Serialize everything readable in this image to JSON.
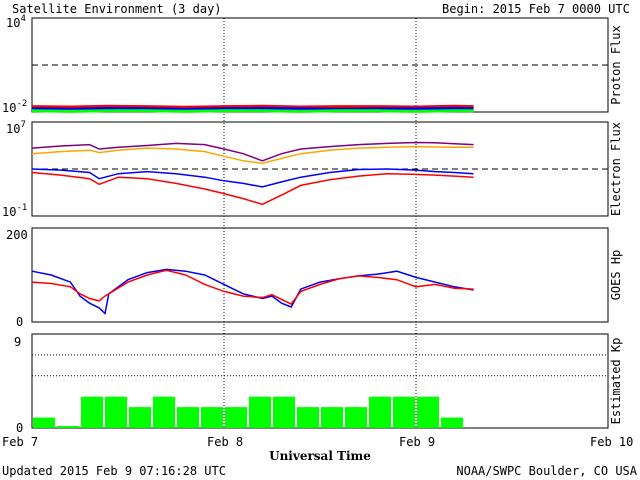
{
  "header": {
    "title": "Satellite Environment (3 day)",
    "begin": "Begin:  2015 Feb 7 0000 UTC"
  },
  "footer": {
    "updated": "Updated 2015 Feb  9 07:16:28 UTC",
    "credit": "NOAA/SWPC Boulder, CO USA",
    "xlabel": "Universal Time"
  },
  "colors": {
    "red": "#ff0000",
    "blue": "#0000ff",
    "green": "#00ff00",
    "purple": "#800080",
    "orange": "#ffa500",
    "kp": "#00ff00"
  },
  "chart_data": [
    {
      "type": "line",
      "panel": "proton",
      "ylabel": "Proton Flux",
      "yscale": "log",
      "ylim": [
        0.01,
        10000
      ],
      "ytick_labels": [
        {
          "base": "10",
          "exp": "4"
        },
        {
          "base": "10",
          "exp": "-2"
        }
      ],
      "threshold": 10,
      "x_range_days": [
        0,
        3
      ],
      "series": [
        {
          "color": "red",
          "values": [
            0.022,
            0.021,
            0.023,
            0.022,
            0.02,
            0.022,
            0.023,
            0.021,
            0.022,
            0.022,
            0.021,
            0.023,
            0.022
          ]
        },
        {
          "color": "blue",
          "values": [
            0.016,
            0.015,
            0.017,
            0.016,
            0.015,
            0.016,
            0.017,
            0.016,
            0.015,
            0.016,
            0.016,
            0.017,
            0.016
          ]
        },
        {
          "color": "green",
          "values": [
            0.012,
            0.011,
            0.012,
            0.012,
            0.011,
            0.012,
            0.012,
            0.011,
            0.012,
            0.012,
            0.011,
            0.012,
            0.012
          ]
        }
      ],
      "x": [
        0,
        0.2,
        0.4,
        0.6,
        0.8,
        1.0,
        1.2,
        1.4,
        1.6,
        1.8,
        2.0,
        2.2,
        2.3
      ]
    },
    {
      "type": "line",
      "panel": "electron",
      "ylabel": "Electron Flux",
      "yscale": "log",
      "ylim": [
        0.1,
        10000000
      ],
      "ytick_labels": [
        {
          "base": "10",
          "exp": "7"
        },
        {
          "base": "10",
          "exp": "-1"
        }
      ],
      "threshold": 1000,
      "x_range_days": [
        0,
        3
      ],
      "x": [
        0,
        0.15,
        0.3,
        0.35,
        0.45,
        0.6,
        0.75,
        0.9,
        1.0,
        1.1,
        1.2,
        1.3,
        1.4,
        1.55,
        1.7,
        1.85,
        2.0,
        2.1,
        2.2,
        2.3
      ],
      "series": [
        {
          "color": "purple",
          "values": [
            60000,
            90000,
            120000,
            50000,
            70000,
            100000,
            150000,
            120000,
            50000,
            20000,
            5000,
            20000,
            50000,
            80000,
            120000,
            150000,
            180000,
            170000,
            140000,
            120000
          ]
        },
        {
          "color": "orange",
          "values": [
            20000,
            30000,
            40000,
            25000,
            40000,
            60000,
            50000,
            30000,
            12000,
            5000,
            3000,
            8000,
            20000,
            40000,
            60000,
            70000,
            80000,
            75000,
            70000,
            70000
          ]
        },
        {
          "color": "blue",
          "values": [
            1000,
            800,
            500,
            150,
            400,
            600,
            400,
            200,
            100,
            60,
            30,
            80,
            200,
            500,
            900,
            1000,
            800,
            600,
            500,
            400
          ]
        },
        {
          "color": "red",
          "values": [
            500,
            300,
            150,
            50,
            200,
            150,
            60,
            20,
            8,
            3,
            1,
            6,
            40,
            120,
            250,
            400,
            350,
            300,
            250,
            200
          ]
        }
      ]
    },
    {
      "type": "line",
      "panel": "hp",
      "ylabel": "GOES Hp",
      "ylim": [
        0,
        200
      ],
      "ytick_labels": [
        "200",
        "0"
      ],
      "x_range_days": [
        0,
        3
      ],
      "x": [
        0,
        0.1,
        0.2,
        0.25,
        0.3,
        0.35,
        0.38,
        0.4,
        0.5,
        0.6,
        0.7,
        0.8,
        0.9,
        1.0,
        1.1,
        1.2,
        1.25,
        1.3,
        1.35,
        1.4,
        1.5,
        1.6,
        1.7,
        1.8,
        1.9,
        2.0,
        2.1,
        2.2,
        2.3
      ],
      "series": [
        {
          "color": "blue",
          "values": [
            108,
            100,
            85,
            55,
            40,
            30,
            18,
            60,
            90,
            105,
            112,
            108,
            100,
            80,
            60,
            50,
            55,
            40,
            32,
            70,
            85,
            92,
            98,
            102,
            108,
            95,
            85,
            75,
            68
          ]
        },
        {
          "color": "red",
          "values": [
            85,
            82,
            75,
            60,
            50,
            45,
            55,
            60,
            85,
            100,
            110,
            100,
            80,
            65,
            55,
            52,
            58,
            48,
            38,
            65,
            80,
            92,
            98,
            95,
            90,
            75,
            80,
            72,
            70
          ]
        }
      ]
    },
    {
      "type": "bar",
      "panel": "kp",
      "ylabel": "Estimated Kp",
      "ylim": [
        0,
        9
      ],
      "ytick_labels": [
        "9",
        "0"
      ],
      "gridlines": [
        5,
        7,
        9
      ],
      "x_range_days": [
        0,
        3
      ],
      "bar_width_days": 0.125,
      "values": [
        1,
        0,
        3,
        3,
        2,
        3,
        2,
        2,
        2,
        3,
        3,
        2,
        2,
        2,
        3,
        3,
        3,
        1
      ]
    }
  ],
  "xaxis": {
    "tick_labels": [
      "Feb 7",
      "Feb 8",
      "Feb 9",
      "Feb 10"
    ]
  }
}
